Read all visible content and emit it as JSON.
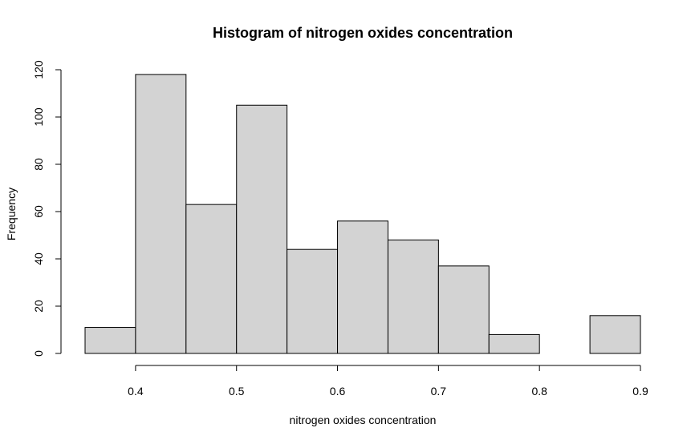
{
  "chart_data": {
    "type": "bar",
    "title": "Histogram of nitrogen oxides concentration",
    "xlabel": "nitrogen oxides concentration",
    "ylabel": "Frequency",
    "bins": [
      {
        "start": 0.35,
        "end": 0.4,
        "count": 11
      },
      {
        "start": 0.4,
        "end": 0.45,
        "count": 118
      },
      {
        "start": 0.45,
        "end": 0.5,
        "count": 63
      },
      {
        "start": 0.5,
        "end": 0.55,
        "count": 105
      },
      {
        "start": 0.55,
        "end": 0.6,
        "count": 44
      },
      {
        "start": 0.6,
        "end": 0.65,
        "count": 56
      },
      {
        "start": 0.65,
        "end": 0.7,
        "count": 48
      },
      {
        "start": 0.7,
        "end": 0.75,
        "count": 37
      },
      {
        "start": 0.75,
        "end": 0.8,
        "count": 8
      },
      {
        "start": 0.8,
        "end": 0.85,
        "count": 0
      },
      {
        "start": 0.85,
        "end": 0.9,
        "count": 16
      }
    ],
    "xlim": [
      0.35,
      0.9
    ],
    "ylim": [
      0,
      120
    ],
    "x_ticks": [
      {
        "value": 0.4,
        "label": "0.4"
      },
      {
        "value": 0.5,
        "label": "0.5"
      },
      {
        "value": 0.6,
        "label": "0.6"
      },
      {
        "value": 0.7,
        "label": "0.7"
      },
      {
        "value": 0.8,
        "label": "0.8"
      },
      {
        "value": 0.9,
        "label": "0.9"
      }
    ],
    "y_ticks": [
      {
        "value": 0,
        "label": "0"
      },
      {
        "value": 20,
        "label": "20"
      },
      {
        "value": 40,
        "label": "40"
      },
      {
        "value": 60,
        "label": "60"
      },
      {
        "value": 80,
        "label": "80"
      },
      {
        "value": 100,
        "label": "100"
      },
      {
        "value": 120,
        "label": "120"
      }
    ],
    "bar_fill": "#d3d3d3",
    "bar_stroke": "#000000",
    "grid": false
  }
}
